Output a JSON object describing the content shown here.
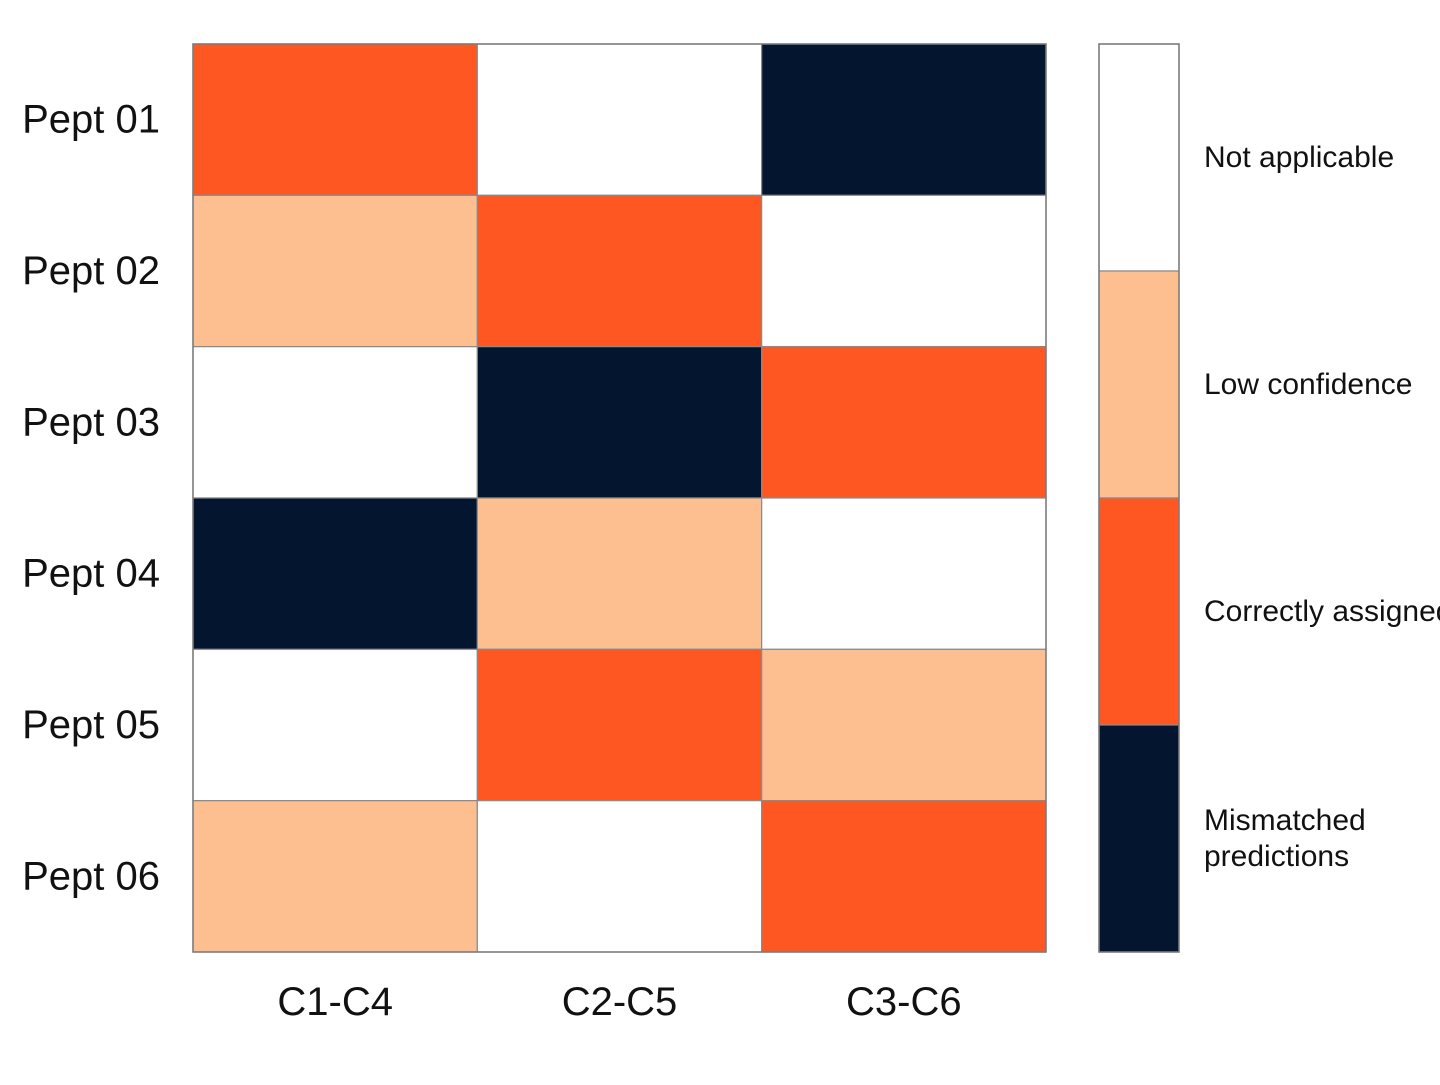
{
  "chart_data": {
    "type": "heatmap",
    "title": "",
    "xlabel": "",
    "ylabel": "",
    "columns": [
      "C1-C4",
      "C2-C5",
      "C3-C6"
    ],
    "rows": [
      "Pept 01",
      "Pept 02",
      "Pept 03",
      "Pept 04",
      "Pept 05",
      "Pept 06"
    ],
    "values": [
      [
        "Correctly assigned",
        "Not applicable",
        "Mismatched predictions"
      ],
      [
        "Low confidence",
        "Correctly assigned",
        "Not applicable"
      ],
      [
        "Not applicable",
        "Mismatched predictions",
        "Correctly assigned"
      ],
      [
        "Mismatched predictions",
        "Low confidence",
        "Not applicable"
      ],
      [
        "Not applicable",
        "Correctly assigned",
        "Low confidence"
      ],
      [
        "Low confidence",
        "Not applicable",
        "Correctly assigned"
      ]
    ],
    "legend": {
      "placement": "right",
      "entries": [
        {
          "label": "Not applicable",
          "lines": [
            "Not applicable"
          ],
          "color": "#ffffff"
        },
        {
          "label": "Low confidence",
          "lines": [
            "Low confidence"
          ],
          "color": "#fdbf90"
        },
        {
          "label": "Correctly assigned",
          "lines": [
            "Correctly assigned"
          ],
          "color": "#fe5722"
        },
        {
          "label": "Mismatched predictions",
          "lines": [
            "Mismatched",
            "predictions"
          ],
          "color": "#041530"
        }
      ]
    },
    "grid": true
  }
}
